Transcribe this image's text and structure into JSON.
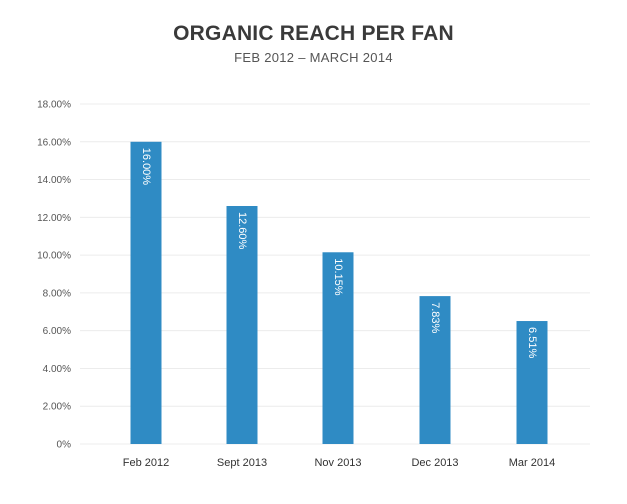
{
  "chart_data": {
    "type": "bar",
    "title": "ORGANIC REACH PER FAN",
    "subtitle": "FEB 2012 – MARCH 2014",
    "categories": [
      "Feb 2012",
      "Sept 2013",
      "Nov 2013",
      "Dec 2013",
      "Mar 2014"
    ],
    "values": [
      16.0,
      12.6,
      10.15,
      7.83,
      6.51
    ],
    "data_labels": [
      "16.00%",
      "12.60%",
      "10.15%",
      "7.83%",
      "6.51%"
    ],
    "y_ticks": [
      0,
      2,
      4,
      6,
      8,
      10,
      12,
      14,
      16,
      18
    ],
    "y_tick_labels": [
      "0%",
      "2.00%",
      "4.00%",
      "6.00%",
      "8.00%",
      "10.00%",
      "12.00%",
      "14.00%",
      "16.00%",
      "18.00%"
    ],
    "ylim": [
      0,
      18
    ],
    "grid": true,
    "legend": "none",
    "bar_color": "#2f8bc4",
    "grid_color": "#ececec"
  }
}
